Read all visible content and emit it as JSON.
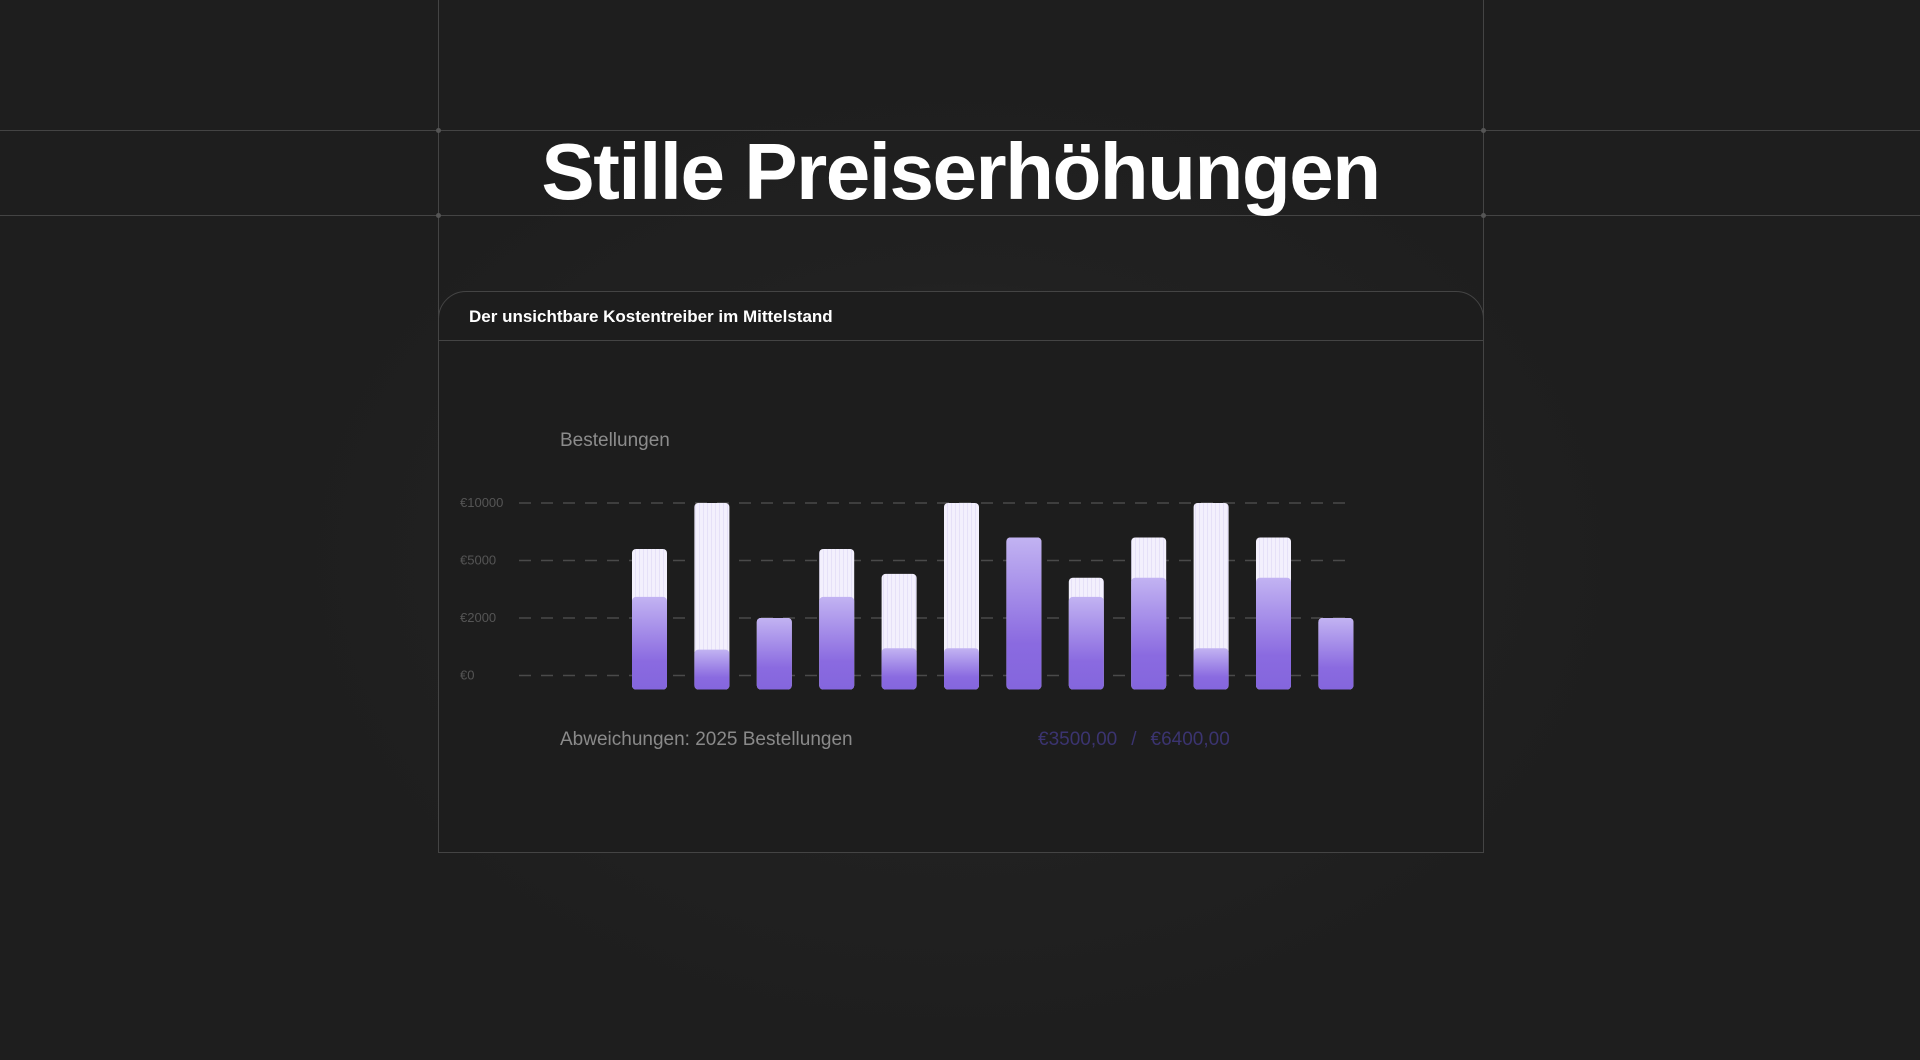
{
  "page": {
    "title": "Stille Preiserhöhungen",
    "card_title": "Der unsichtbare Kostentreiber im Mittelstand"
  },
  "chart_data": {
    "type": "bar",
    "stacked": true,
    "title": "Bestellungen",
    "y_ticks": [
      "€0",
      "€2000",
      "€5000",
      "€10000"
    ],
    "y_tick_values": [
      0,
      2000,
      5000,
      10000
    ],
    "scale": "piecewise (ticks evenly spaced)",
    "grid": "dashed horizontal",
    "colors": {
      "lower": "#8a6ae0",
      "lower_top": "#c2b3f2",
      "upper": "#f1eefc"
    },
    "totals": [
      6000,
      10000,
      2000,
      6000,
      4300,
      10000,
      7000,
      4100,
      7000,
      10000,
      7000,
      2000
    ],
    "lower": [
      3100,
      900,
      2000,
      3100,
      950,
      950,
      7000,
      3100,
      4100,
      950,
      4100,
      2000
    ]
  },
  "footer": {
    "label": "Abweichungen: 2025 Bestellungen",
    "value_a": "€3500,00",
    "separator": "/",
    "value_b": "€6400,00"
  }
}
